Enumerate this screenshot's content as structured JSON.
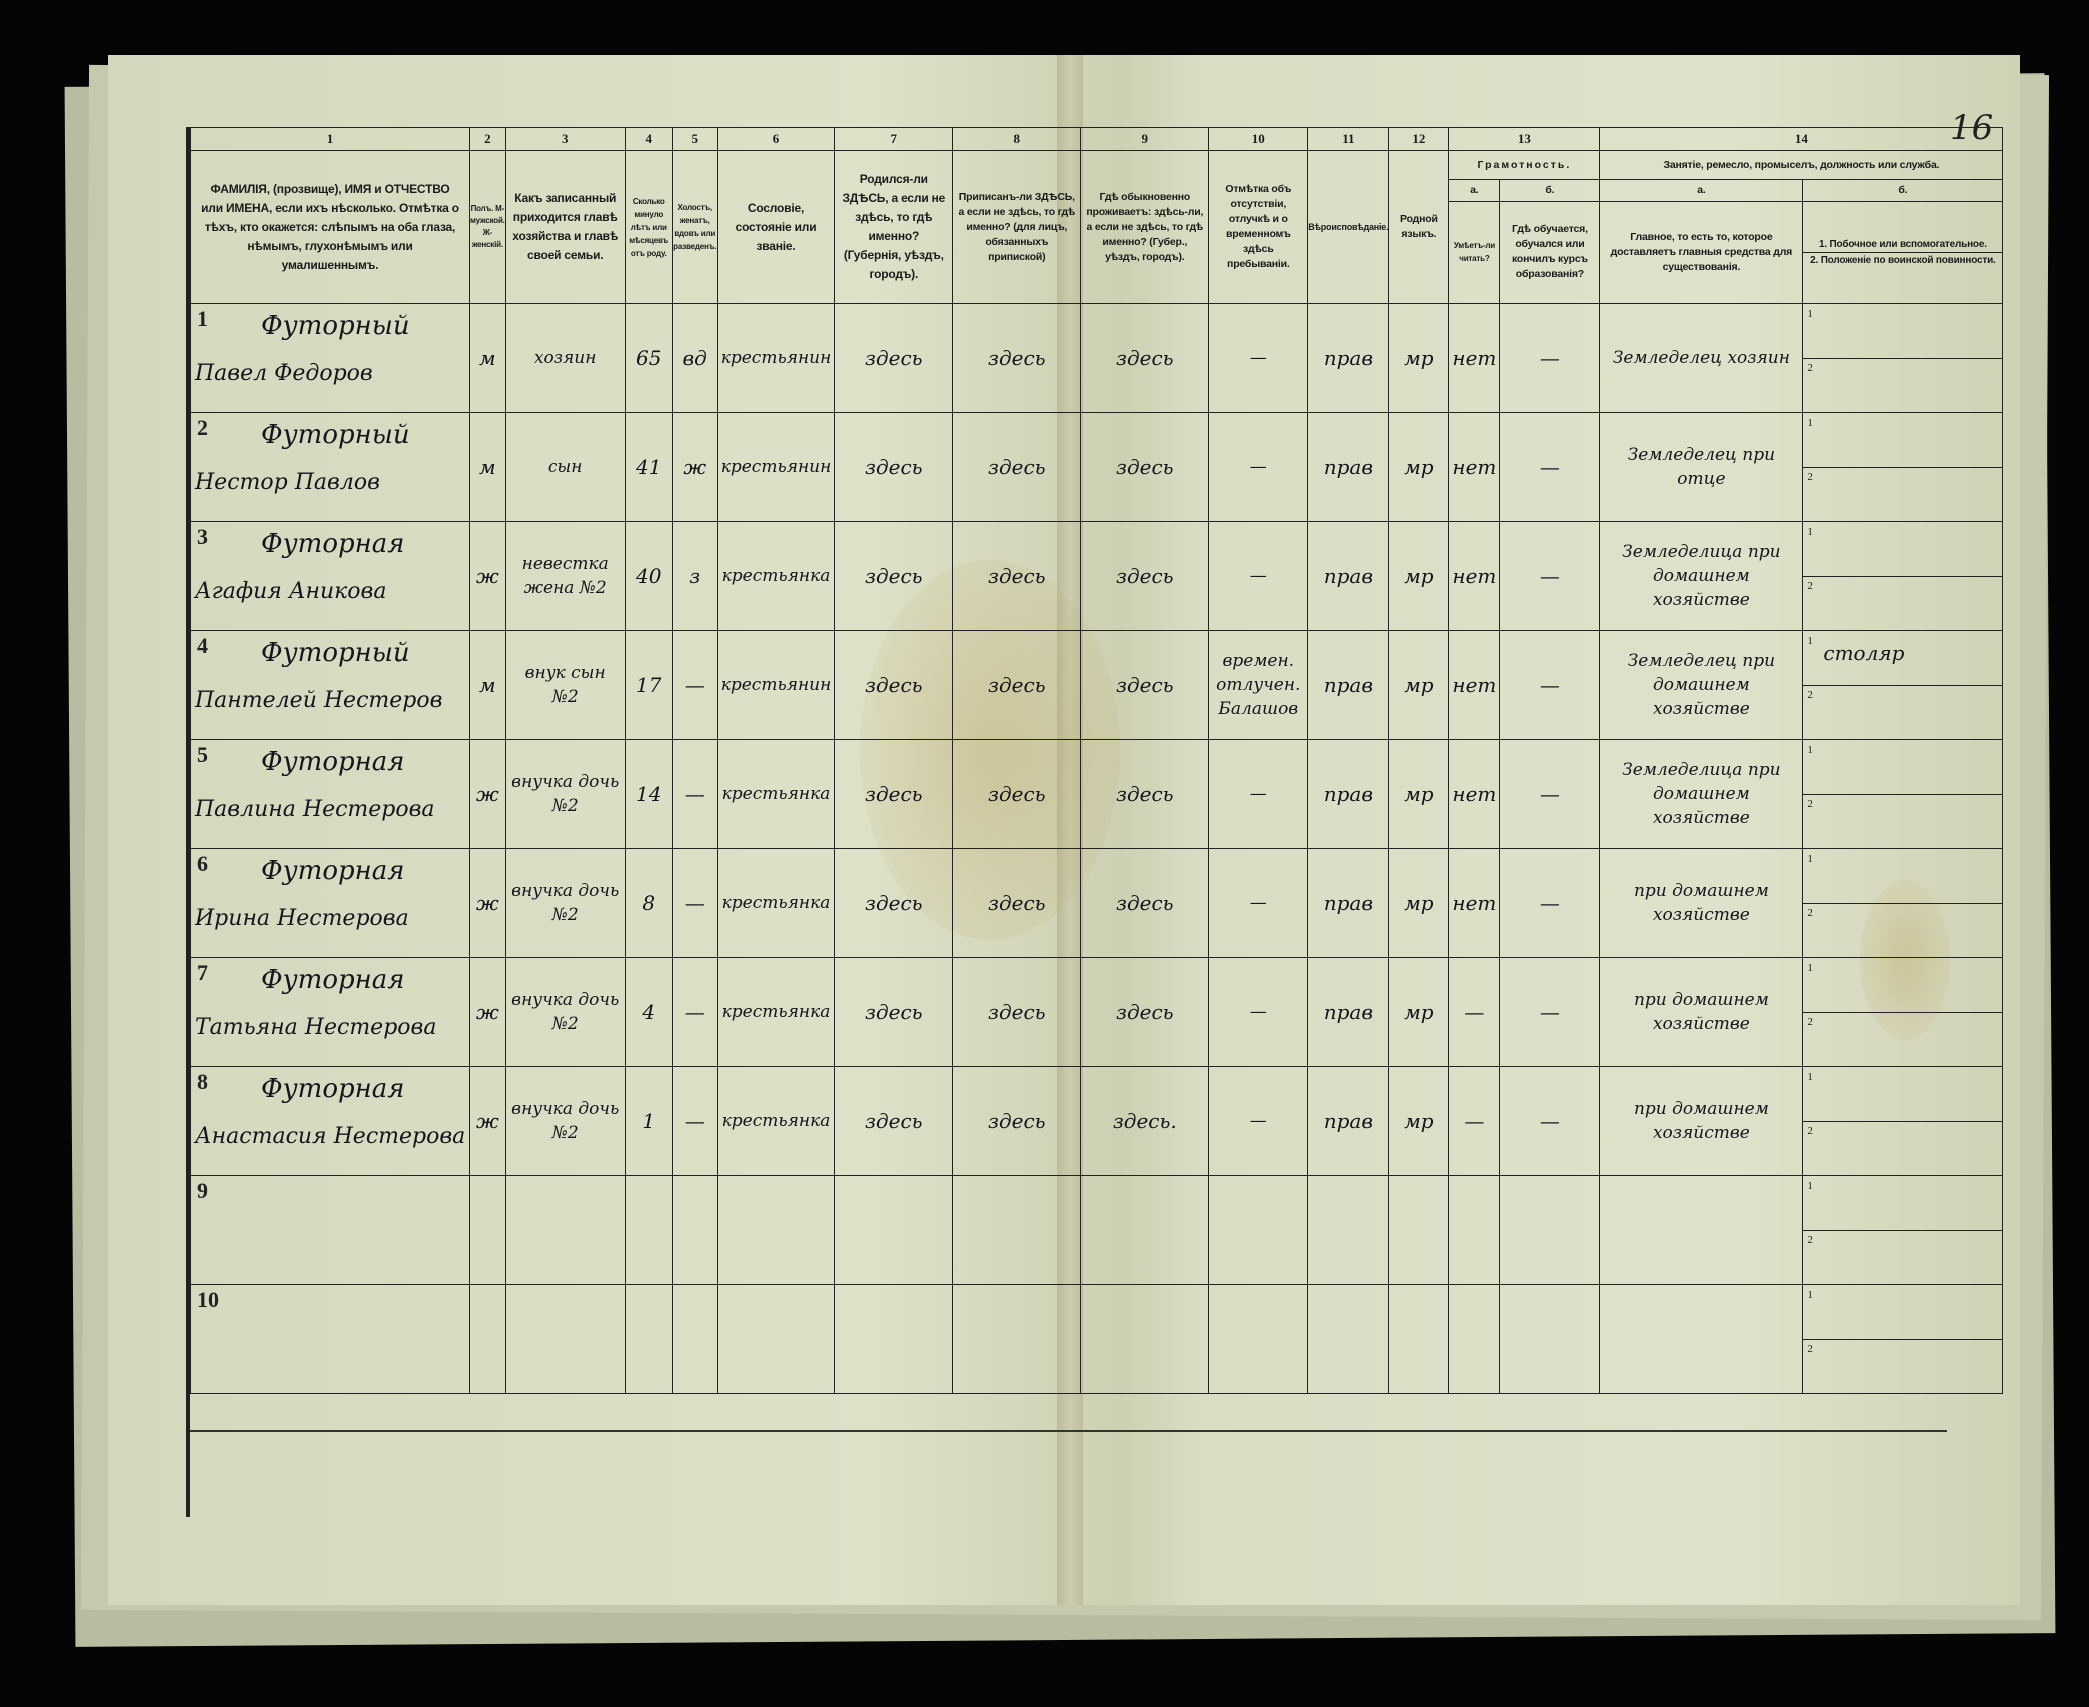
{
  "page_number": "16",
  "header": {
    "col_numbers": [
      "1",
      "2",
      "3",
      "4",
      "5",
      "6",
      "7",
      "8",
      "9",
      "10",
      "11",
      "12",
      "13",
      "14"
    ],
    "col1": "ФАМИЛІЯ, (прозвище), ИМЯ и ОТЧЕСТВО или ИМЕНА, если ихъ нѣсколько. Отмѣтка о тѣхъ, кто окажется: слѣпымъ на оба глаза, нѣмымъ, глухонѣмымъ или умалишеннымъ.",
    "col2": "Полъ. М-мужской. Ж-женскій.",
    "col3": "Какъ записанный приходится главѣ хозяйства и главѣ своей семьи.",
    "col4": "Сколько минуло лѣтъ или мѣсяцевъ отъ роду.",
    "col5": "Холостъ, женатъ, вдовъ или разведенъ.",
    "col6": "Сословіе, состояніе или званіе.",
    "col7": "Родился-ли ЗДѢСЬ, а если не здѣсь, то гдѣ именно? (Губернія, уѣздъ, городъ).",
    "col8": "Приписанъ-ли ЗДѢСЬ, а если не здѣсь, то гдѣ именно? (для лицъ, обязанныхъ припиской)",
    "col9": "Гдѣ обыкновенно проживаетъ: здѣсь-ли, а если не здѣсь, то гдѣ именно? (Губер., уѣздъ, городъ).",
    "col10": "Отмѣтка объ отсутствіи, отлучкѣ и о временномъ здѣсь пребываніи.",
    "col11": "Вѣроисповѣданіе.",
    "col12": "Родной языкъ.",
    "col13": "Грамотность.",
    "col13a_letter": "а.",
    "col13a": "Умѣетъ-ли читать?",
    "col13b_letter": "б.",
    "col13b": "Гдѣ обучается, обучался или кончилъ курсъ образованія?",
    "col14": "Занятіе, ремесло, промыселъ, должность или служба.",
    "col14a_letter": "а.",
    "col14a": "Главное, то есть то, которое доставляетъ главныя средства для существованія.",
    "col14b_letter": "б.",
    "col14b_1": "1. Побочное или вспомогательное.",
    "col14b_2": "2. Положеніе по воинской повинности."
  },
  "sub_labels": [
    "1",
    "2"
  ],
  "rows": [
    {
      "n": "1",
      "surname": "Футорный",
      "name": "Павел Федоров",
      "sex": "м",
      "relation": "хозяин",
      "age": "65",
      "marital": "вд",
      "estate": "крестьянин",
      "born": "здесь",
      "registered": "здесь",
      "lives": "здесь",
      "absence": "—",
      "religion": "прав",
      "language": "мр",
      "literate": "нет",
      "education": "—",
      "occupation": "Земледелец хозяин",
      "side": "",
      "military": ""
    },
    {
      "n": "2",
      "surname": "Футорный",
      "name": "Нестор Павлов",
      "sex": "м",
      "relation": "сын",
      "age": "41",
      "marital": "ж",
      "estate": "крестьянин",
      "born": "здесь",
      "registered": "здесь",
      "lives": "здесь",
      "absence": "—",
      "religion": "прав",
      "language": "мр",
      "literate": "нет",
      "education": "—",
      "occupation": "Земледелец при отце",
      "side": "",
      "military": ""
    },
    {
      "n": "3",
      "surname": "Футорная",
      "name": "Агафия Аникова",
      "sex": "ж",
      "relation": "невестка жена №2",
      "age": "40",
      "marital": "з",
      "estate": "крестьянка",
      "born": "здесь",
      "registered": "здесь",
      "lives": "здесь",
      "absence": "—",
      "religion": "прав",
      "language": "мр",
      "literate": "нет",
      "education": "—",
      "occupation": "Земледелица при домашнем хозяйстве",
      "side": "",
      "military": ""
    },
    {
      "n": "4",
      "surname": "Футорный",
      "name": "Пантелей Нестеров",
      "sex": "м",
      "relation": "внук сын №2",
      "age": "17",
      "marital": "—",
      "estate": "крестьянин",
      "born": "здесь",
      "registered": "здесь",
      "lives": "здесь",
      "absence": "времен. отлучен. Балашов",
      "religion": "прав",
      "language": "мр",
      "literate": "нет",
      "education": "—",
      "occupation": "Земледелец при домашнем хозяйстве",
      "side": "столяр",
      "military": ""
    },
    {
      "n": "5",
      "surname": "Футорная",
      "name": "Павлина Нестерова",
      "sex": "ж",
      "relation": "внучка дочь №2",
      "age": "14",
      "marital": "—",
      "estate": "крестьянка",
      "born": "здесь",
      "registered": "здесь",
      "lives": "здесь",
      "absence": "—",
      "religion": "прав",
      "language": "мр",
      "literate": "нет",
      "education": "—",
      "occupation": "Земледелица при домашнем хозяйстве",
      "side": "",
      "military": ""
    },
    {
      "n": "6",
      "surname": "Футорная",
      "name": "Ирина Нестерова",
      "sex": "ж",
      "relation": "внучка дочь №2",
      "age": "8",
      "marital": "—",
      "estate": "крестьянка",
      "born": "здесь",
      "registered": "здесь",
      "lives": "здесь",
      "absence": "—",
      "religion": "прав",
      "language": "мр",
      "literate": "нет",
      "education": "—",
      "occupation": "при домашнем хозяйстве",
      "side": "",
      "military": ""
    },
    {
      "n": "7",
      "surname": "Футорная",
      "name": "Татьяна Нестерова",
      "sex": "ж",
      "relation": "внучка дочь №2",
      "age": "4",
      "marital": "—",
      "estate": "крестьянка",
      "born": "здесь",
      "registered": "здесь",
      "lives": "здесь",
      "absence": "—",
      "religion": "прав",
      "language": "мр",
      "literate": "—",
      "education": "—",
      "occupation": "при домашнем хозяйстве",
      "side": "",
      "military": ""
    },
    {
      "n": "8",
      "surname": "Футорная",
      "name": "Анастасия Нестерова",
      "sex": "ж",
      "relation": "внучка дочь №2",
      "age": "1",
      "marital": "—",
      "estate": "крестьянка",
      "born": "здесь",
      "registered": "здесь",
      "lives": "здесь.",
      "absence": "—",
      "religion": "прав",
      "language": "мр",
      "literate": "—",
      "education": "—",
      "occupation": "при домашнем хозяйстве",
      "side": "",
      "military": ""
    },
    {
      "n": "9",
      "surname": "",
      "name": "",
      "sex": "",
      "relation": "",
      "age": "",
      "marital": "",
      "estate": "",
      "born": "",
      "registered": "",
      "lives": "",
      "absence": "",
      "religion": "",
      "language": "",
      "literate": "",
      "education": "",
      "occupation": "",
      "side": "",
      "military": ""
    },
    {
      "n": "10",
      "surname": "",
      "name": "",
      "sex": "",
      "relation": "",
      "age": "",
      "marital": "",
      "estate": "",
      "born": "",
      "registered": "",
      "lives": "",
      "absence": "",
      "religion": "",
      "language": "",
      "literate": "",
      "education": "",
      "occupation": "",
      "side": "",
      "military": ""
    }
  ],
  "colors": {
    "paper": "#dde1c8",
    "ink": "#15151d",
    "print": "#1b1b1b",
    "background": "#050505"
  }
}
